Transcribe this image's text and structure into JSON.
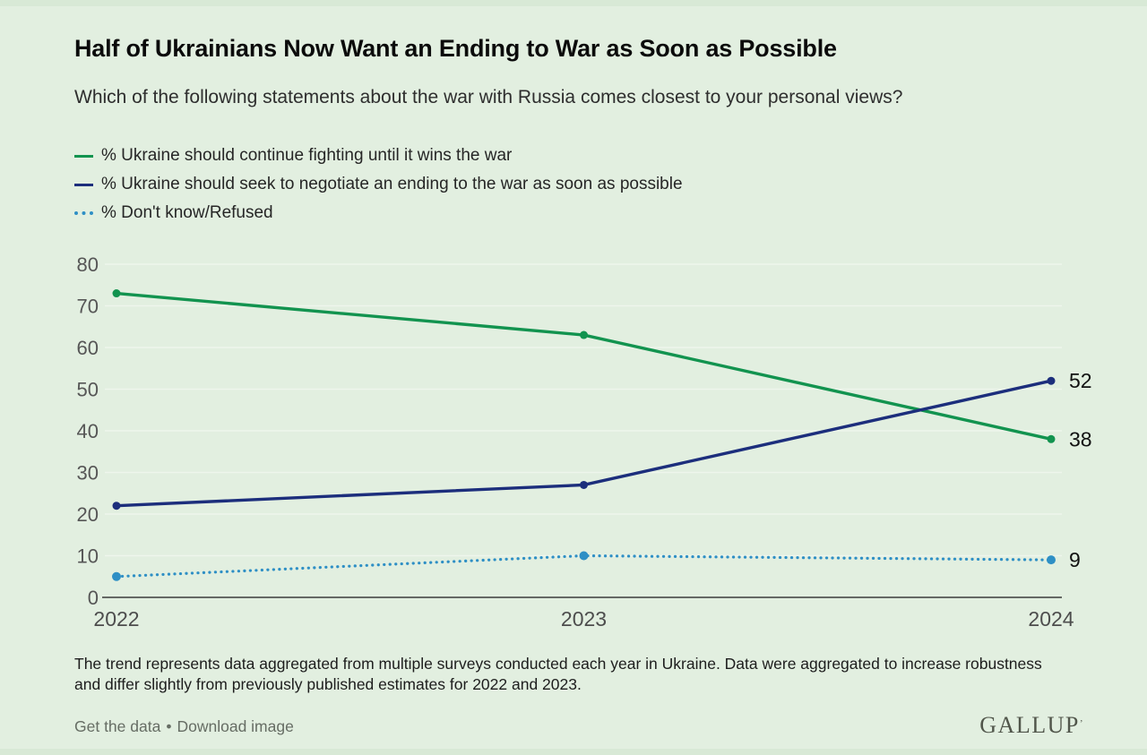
{
  "header": {
    "title": "Half of Ukrainians Now Want an Ending to War as Soon as Possible",
    "subtitle": "Which of the following statements about the war with Russia comes closest to your personal views?"
  },
  "legend": [
    {
      "label": "% Ukraine should continue fighting until it wins the war",
      "color": "#12934f",
      "style": "solid"
    },
    {
      "label": "% Ukraine should seek to negotiate an ending to the war as soon as possible",
      "color": "#1c2e7c",
      "style": "solid"
    },
    {
      "label": "% Don't know/Refused",
      "color": "#2e8fc5",
      "style": "dotted"
    }
  ],
  "chart_data": {
    "type": "line",
    "title": "Half of Ukrainians Now Want an Ending to War as Soon as Possible",
    "x": [
      "2022",
      "2023",
      "2024"
    ],
    "series": [
      {
        "name": "% Ukraine should continue fighting until it wins the war",
        "values": [
          73,
          63,
          38
        ],
        "color": "#12934f",
        "style": "solid",
        "end_label": "38"
      },
      {
        "name": "% Ukraine should seek to negotiate an ending to the war as soon as possible",
        "values": [
          22,
          27,
          52
        ],
        "color": "#1c2e7c",
        "style": "solid",
        "end_label": "52"
      },
      {
        "name": "% Don't know/Refused",
        "values": [
          5,
          10,
          9
        ],
        "color": "#2e8fc5",
        "style": "dotted",
        "end_label": "9"
      }
    ],
    "ylim": [
      0,
      80
    ],
    "yticks": [
      0,
      10,
      20,
      30,
      40,
      50,
      60,
      70,
      80
    ],
    "grid": true,
    "legend_position": "top-left",
    "xlabel": "",
    "ylabel": ""
  },
  "footnote": "The trend represents data aggregated from multiple surveys conducted each year in Ukraine. Data were aggregated to increase robustness and differ slightly from previously published estimates for 2022 and 2023.",
  "footer": {
    "links": [
      {
        "label": "Get the data"
      },
      {
        "label": "Download image"
      }
    ],
    "separator": "•",
    "logo": "GALLUP",
    "logo_mark": "’"
  },
  "colors": {
    "page_background": "#e2efe0",
    "outer_background": "#d8e9d6",
    "gridline": "#eef6ec",
    "axis_line": "#3b3b3b",
    "tick_label": "#565656",
    "x_label": "#4d4d4d",
    "end_label": "#111111",
    "title_text": "#0b0b0b",
    "footer_text": "#666d64"
  }
}
